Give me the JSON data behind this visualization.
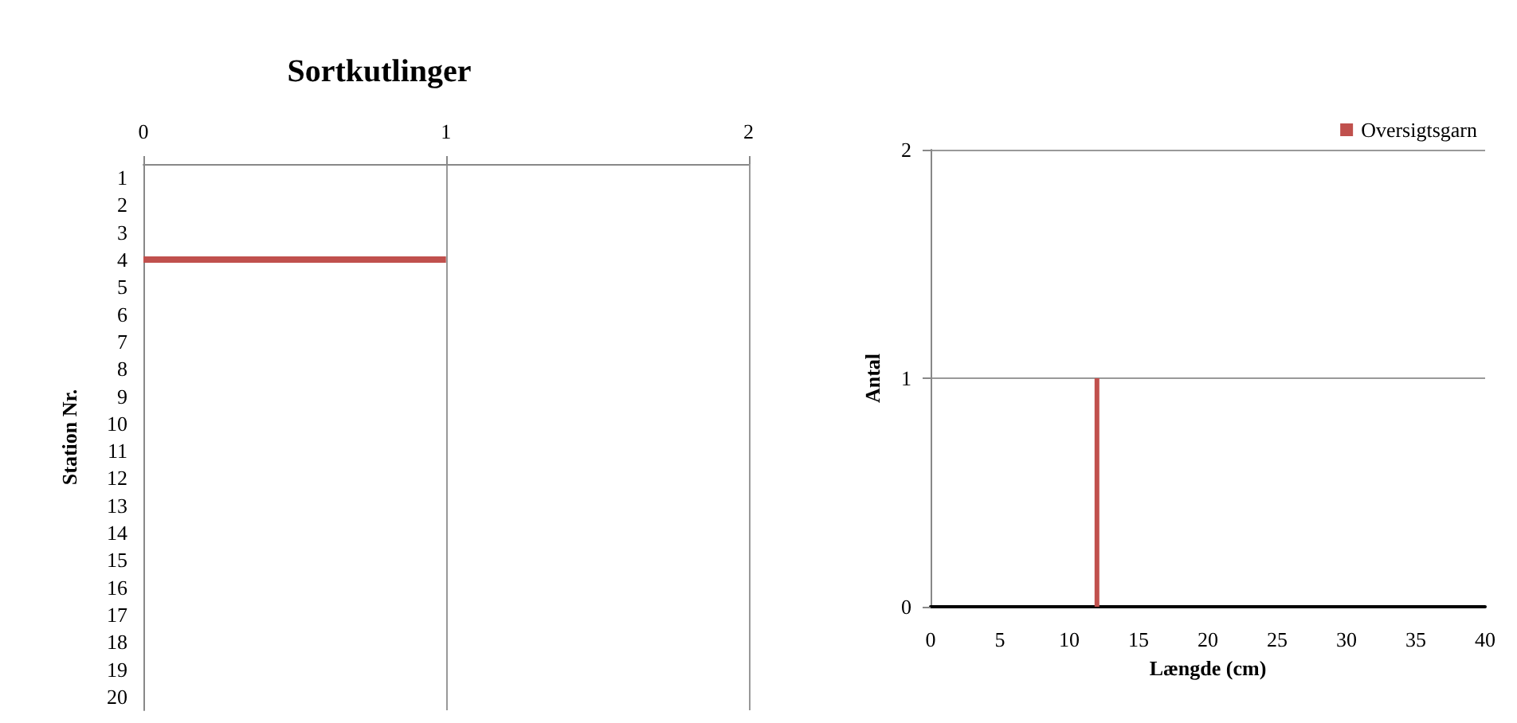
{
  "chart_data": [
    {
      "type": "bar",
      "orientation": "horizontal",
      "title": "Sortkutlinger",
      "ylabel": "Station Nr.",
      "categories": [
        "1",
        "2",
        "3",
        "4",
        "5",
        "6",
        "7",
        "8",
        "9",
        "10",
        "11",
        "12",
        "13",
        "14",
        "15",
        "16",
        "17",
        "18",
        "19",
        "20"
      ],
      "series": [
        {
          "color": "#c0504d",
          "values": [
            null,
            null,
            null,
            1,
            null,
            null,
            null,
            null,
            null,
            null,
            null,
            null,
            null,
            null,
            null,
            null,
            null,
            null,
            null,
            null
          ]
        }
      ],
      "xlim": [
        0,
        2
      ],
      "xticks": [
        0,
        1,
        2
      ],
      "grid": "x",
      "legend": false
    },
    {
      "type": "bar",
      "xlabel": "Længde (cm)",
      "ylabel": "Antal",
      "x": [
        12
      ],
      "series": [
        {
          "name": "Oversigtsgarn",
          "color": "#c0504d",
          "values": [
            1
          ]
        }
      ],
      "xlim": [
        0,
        40
      ],
      "xticks": [
        0,
        5,
        10,
        15,
        20,
        25,
        30,
        35,
        40
      ],
      "ylim": [
        0,
        2
      ],
      "yticks": [
        0,
        1,
        2
      ],
      "grid": "y",
      "legend": "top right"
    }
  ]
}
